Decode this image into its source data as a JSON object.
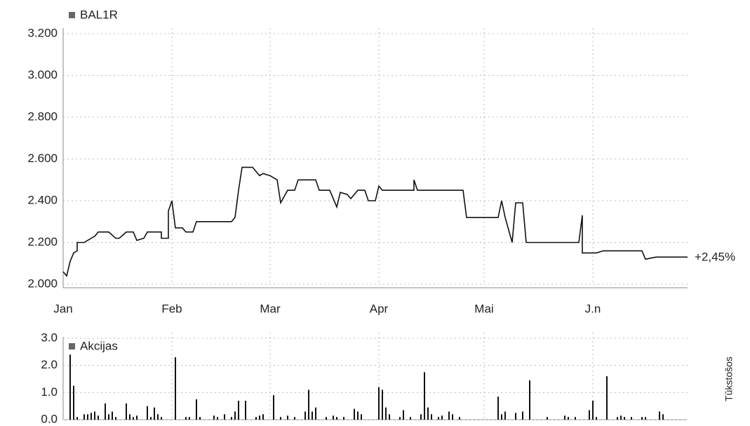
{
  "chart_data": [
    {
      "type": "line",
      "legend": "BAL1R",
      "annotation": "+2,45%",
      "xlim": [
        0,
        180
      ],
      "xticks": [
        {
          "value": 0,
          "label": "Jan"
        },
        {
          "value": 31,
          "label": "Feb"
        },
        {
          "value": 59,
          "label": "Mar"
        },
        {
          "value": 90,
          "label": "Apr"
        },
        {
          "value": 120,
          "label": "Mai"
        },
        {
          "value": 151,
          "label": "J.n"
        }
      ],
      "ylim": [
        2.0,
        3.2
      ],
      "yticks": [
        {
          "value": 2.0,
          "label": "2.000"
        },
        {
          "value": 2.2,
          "label": "2.200"
        },
        {
          "value": 2.4,
          "label": "2.400"
        },
        {
          "value": 2.6,
          "label": "2.600"
        },
        {
          "value": 2.8,
          "label": "2.800"
        },
        {
          "value": 3.0,
          "label": "3.000"
        },
        {
          "value": 3.2,
          "label": "3.200"
        }
      ],
      "grid": true,
      "series": [
        {
          "name": "BAL1R",
          "color": "#111111",
          "x": [
            0,
            1,
            2,
            3,
            4,
            4,
            6,
            8,
            9,
            10,
            13,
            15,
            16,
            18,
            20,
            21,
            23,
            24,
            28,
            28,
            30,
            30,
            31,
            32,
            34,
            35,
            37,
            38,
            48,
            49,
            50,
            51,
            54,
            56,
            57,
            59,
            61,
            62,
            64,
            66,
            67,
            72,
            73,
            76,
            78,
            79,
            81,
            82,
            84,
            86,
            87,
            89,
            90,
            91,
            100,
            100,
            101,
            114,
            115,
            124,
            125,
            126,
            128,
            129,
            131,
            132,
            147,
            148,
            148,
            152,
            154,
            165,
            166,
            169,
            178
          ],
          "values": [
            2.06,
            2.04,
            2.11,
            2.15,
            2.16,
            2.2,
            2.2,
            2.22,
            2.23,
            2.25,
            2.25,
            2.22,
            2.22,
            2.25,
            2.25,
            2.21,
            2.22,
            2.25,
            2.25,
            2.22,
            2.22,
            2.35,
            2.4,
            2.27,
            2.27,
            2.25,
            2.25,
            2.3,
            2.3,
            2.32,
            2.45,
            2.56,
            2.56,
            2.52,
            2.53,
            2.52,
            2.5,
            2.39,
            2.45,
            2.45,
            2.5,
            2.5,
            2.45,
            2.45,
            2.37,
            2.44,
            2.43,
            2.41,
            2.45,
            2.45,
            2.4,
            2.4,
            2.47,
            2.45,
            2.45,
            2.5,
            2.45,
            2.45,
            2.32,
            2.32,
            2.4,
            2.32,
            2.2,
            2.39,
            2.39,
            2.2,
            2.2,
            2.33,
            2.15,
            2.15,
            2.16,
            2.16,
            2.12,
            2.13,
            2.13
          ]
        }
      ]
    },
    {
      "type": "bar",
      "legend": "Akcijas",
      "ylabel": "Tūkstošos",
      "xlim": [
        0,
        180
      ],
      "ylim": [
        0,
        3
      ],
      "yticks": [
        {
          "value": 0,
          "label": "0.0"
        },
        {
          "value": 1,
          "label": "1.0"
        },
        {
          "value": 2,
          "label": "2.0"
        },
        {
          "value": 3,
          "label": "3.0"
        }
      ],
      "grid": true,
      "series": [
        {
          "name": "Akcijas",
          "color": "#111111",
          "x": [
            2,
            3,
            4,
            6,
            7,
            8,
            9,
            10,
            12,
            13,
            14,
            15,
            18,
            19,
            20,
            21,
            24,
            25,
            26,
            27,
            28,
            32,
            35,
            36,
            38,
            39,
            43,
            44,
            46,
            48,
            49,
            50,
            52,
            55,
            56,
            57,
            60,
            62,
            64,
            66,
            69,
            70,
            71,
            72,
            75,
            77,
            78,
            80,
            83,
            84,
            85,
            90,
            91,
            92,
            93,
            96,
            97,
            99,
            102,
            103,
            104,
            105,
            107,
            108,
            110,
            111,
            113,
            124,
            125,
            126,
            129,
            131,
            133,
            138,
            143,
            144,
            146,
            150,
            151,
            152,
            155,
            158,
            159,
            160,
            162,
            165,
            166,
            170,
            171
          ],
          "values": [
            2.4,
            1.25,
            0.1,
            0.2,
            0.2,
            0.25,
            0.3,
            0.15,
            0.6,
            0.2,
            0.3,
            0.1,
            0.6,
            0.2,
            0.1,
            0.15,
            0.5,
            0.1,
            0.45,
            0.2,
            0.1,
            2.3,
            0.1,
            0.1,
            0.75,
            0.1,
            0.15,
            0.1,
            0.2,
            0.1,
            0.3,
            0.7,
            0.7,
            0.1,
            0.15,
            0.2,
            0.9,
            0.1,
            0.15,
            0.1,
            0.3,
            1.1,
            0.3,
            0.45,
            0.1,
            0.15,
            0.1,
            0.1,
            0.4,
            0.3,
            0.2,
            1.2,
            1.1,
            0.45,
            0.2,
            0.1,
            0.35,
            0.1,
            0.2,
            1.75,
            0.45,
            0.2,
            0.1,
            0.15,
            0.3,
            0.2,
            0.1,
            0.85,
            0.2,
            0.3,
            0.25,
            0.3,
            1.45,
            0.1,
            0.15,
            0.1,
            0.1,
            0.35,
            0.7,
            0.1,
            1.6,
            0.1,
            0.15,
            0.1,
            0.1,
            0.1,
            0.1,
            0.3,
            0.2
          ]
        }
      ]
    }
  ]
}
